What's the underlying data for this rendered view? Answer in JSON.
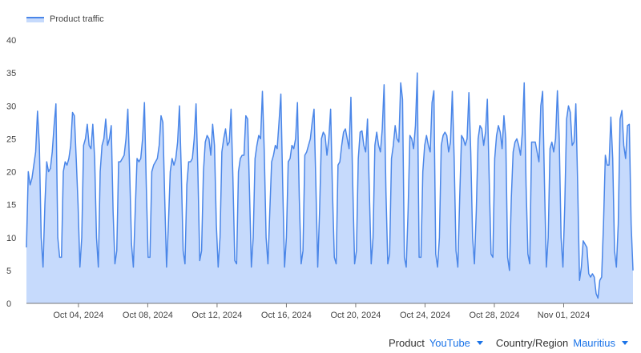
{
  "legend": {
    "series_label": "Product traffic"
  },
  "controls": [
    {
      "label": "Product",
      "value": "YouTube"
    },
    {
      "label": "Country/Region",
      "value": "Mauritius"
    }
  ],
  "colors": {
    "line": "#4a86e8",
    "fill": "#c6dafc",
    "axis": "#777777",
    "accent": "#1a73e8"
  },
  "chart_data": {
    "type": "area",
    "title": "",
    "xlabel": "",
    "ylabel": "",
    "ylim": [
      0,
      40
    ],
    "yticks": [
      0,
      5,
      10,
      15,
      20,
      25,
      30,
      35,
      40
    ],
    "grid": false,
    "legend_position": "top-left",
    "x_tick_labels": [
      "Oct 04, 2024",
      "Oct 08, 2024",
      "Oct 12, 2024",
      "Oct 16, 2024",
      "Oct 20, 2024",
      "Oct 24, 2024",
      "Oct 28, 2024",
      "Nov 01, 2024"
    ],
    "x_tick_dates": [
      "2024-10-04",
      "2024-10-08",
      "2024-10-12",
      "2024-10-16",
      "2024-10-20",
      "2024-10-24",
      "2024-10-28",
      "2024-11-01"
    ],
    "x_start": "2024-10-01",
    "x_end": "2024-11-05",
    "series": [
      {
        "name": "Product traffic",
        "values": [
          8.5,
          20,
          18,
          19,
          21,
          23,
          29.2,
          24,
          10,
          5.5,
          15,
          21.5,
          20,
          20.5,
          23,
          27,
          30.3,
          10,
          7,
          7,
          20,
          21.5,
          21,
          22,
          24,
          29,
          28.5,
          22,
          15,
          5.5,
          10,
          24,
          25,
          27.2,
          24,
          23.5,
          27.2,
          22,
          10,
          5.5,
          20,
          24,
          25,
          28,
          24,
          25,
          27,
          14,
          6,
          8,
          21.5,
          21.5,
          22,
          22.5,
          25,
          29.5,
          20,
          9,
          5.5,
          14,
          22,
          21.5,
          22,
          25,
          30.5,
          18,
          7,
          7,
          20,
          21,
          21.5,
          22,
          24,
          28.5,
          27.5,
          16,
          5.5,
          12,
          20,
          22,
          21,
          22,
          24.5,
          30,
          20,
          8,
          6,
          18,
          21.5,
          21.5,
          22,
          25,
          30.3,
          20,
          6.5,
          8,
          20,
          24.5,
          25.5,
          25,
          22.5,
          27.2,
          24,
          12,
          5.5,
          10,
          23,
          25,
          26.5,
          24,
          24.5,
          29.5,
          19,
          6.5,
          6,
          20,
          22,
          22.5,
          22.5,
          28.5,
          28,
          17,
          5.5,
          10,
          22,
          24,
          25.5,
          25,
          32.2,
          23,
          10,
          6,
          14,
          21.5,
          22.5,
          24,
          23.5,
          27.5,
          31.8,
          18,
          5.5,
          10,
          21.5,
          22,
          24,
          23.5,
          25,
          30.5,
          16,
          6,
          8,
          22.5,
          23,
          24,
          25,
          27.5,
          29.5,
          18,
          5.5,
          14,
          25,
          26,
          25.5,
          22.5,
          25,
          29.5,
          17,
          7,
          6,
          21,
          21.5,
          24,
          26,
          26.5,
          25,
          23.5,
          31.3,
          18,
          6,
          8,
          22,
          26,
          26.2,
          24,
          23,
          28,
          17,
          6,
          10,
          24,
          26,
          24,
          23,
          26.5,
          33.2,
          17,
          6,
          7.5,
          22,
          24,
          27,
          25,
          24.5,
          33.5,
          31,
          7,
          5.5,
          14,
          25.5,
          25,
          23.5,
          27,
          35,
          7,
          7,
          20,
          24,
          25.5,
          24,
          23,
          30.5,
          32.3,
          7.5,
          5.5,
          10,
          24,
          25.5,
          26,
          25.5,
          23,
          24.5,
          32.2,
          22,
          8,
          5.5,
          16,
          25.5,
          25,
          24,
          25,
          32,
          23,
          10,
          6,
          14,
          25,
          27,
          26.5,
          24,
          26,
          31,
          19,
          7.5,
          7,
          22,
          25.5,
          27,
          26,
          23.5,
          28.5,
          25,
          7,
          5,
          16,
          23,
          24.5,
          25,
          24,
          22.5,
          26,
          33.5,
          18,
          7.5,
          6,
          24.5,
          24.5,
          24.5,
          23,
          21.5,
          30,
          32.2,
          18,
          5.5,
          10,
          23.5,
          24.5,
          23,
          25,
          32.3,
          25,
          10,
          5.5,
          15,
          28,
          30,
          29,
          24,
          24.5,
          30.3,
          18,
          3.5,
          5.5,
          9.5,
          9,
          8.5,
          4.5,
          4,
          4.5,
          4,
          1.5,
          0.8,
          3.5,
          4,
          12,
          22.5,
          21,
          21,
          28.3,
          22,
          8,
          5.5,
          12,
          28,
          29.3,
          24,
          22,
          27,
          27.2,
          12,
          5
        ]
      }
    ]
  }
}
